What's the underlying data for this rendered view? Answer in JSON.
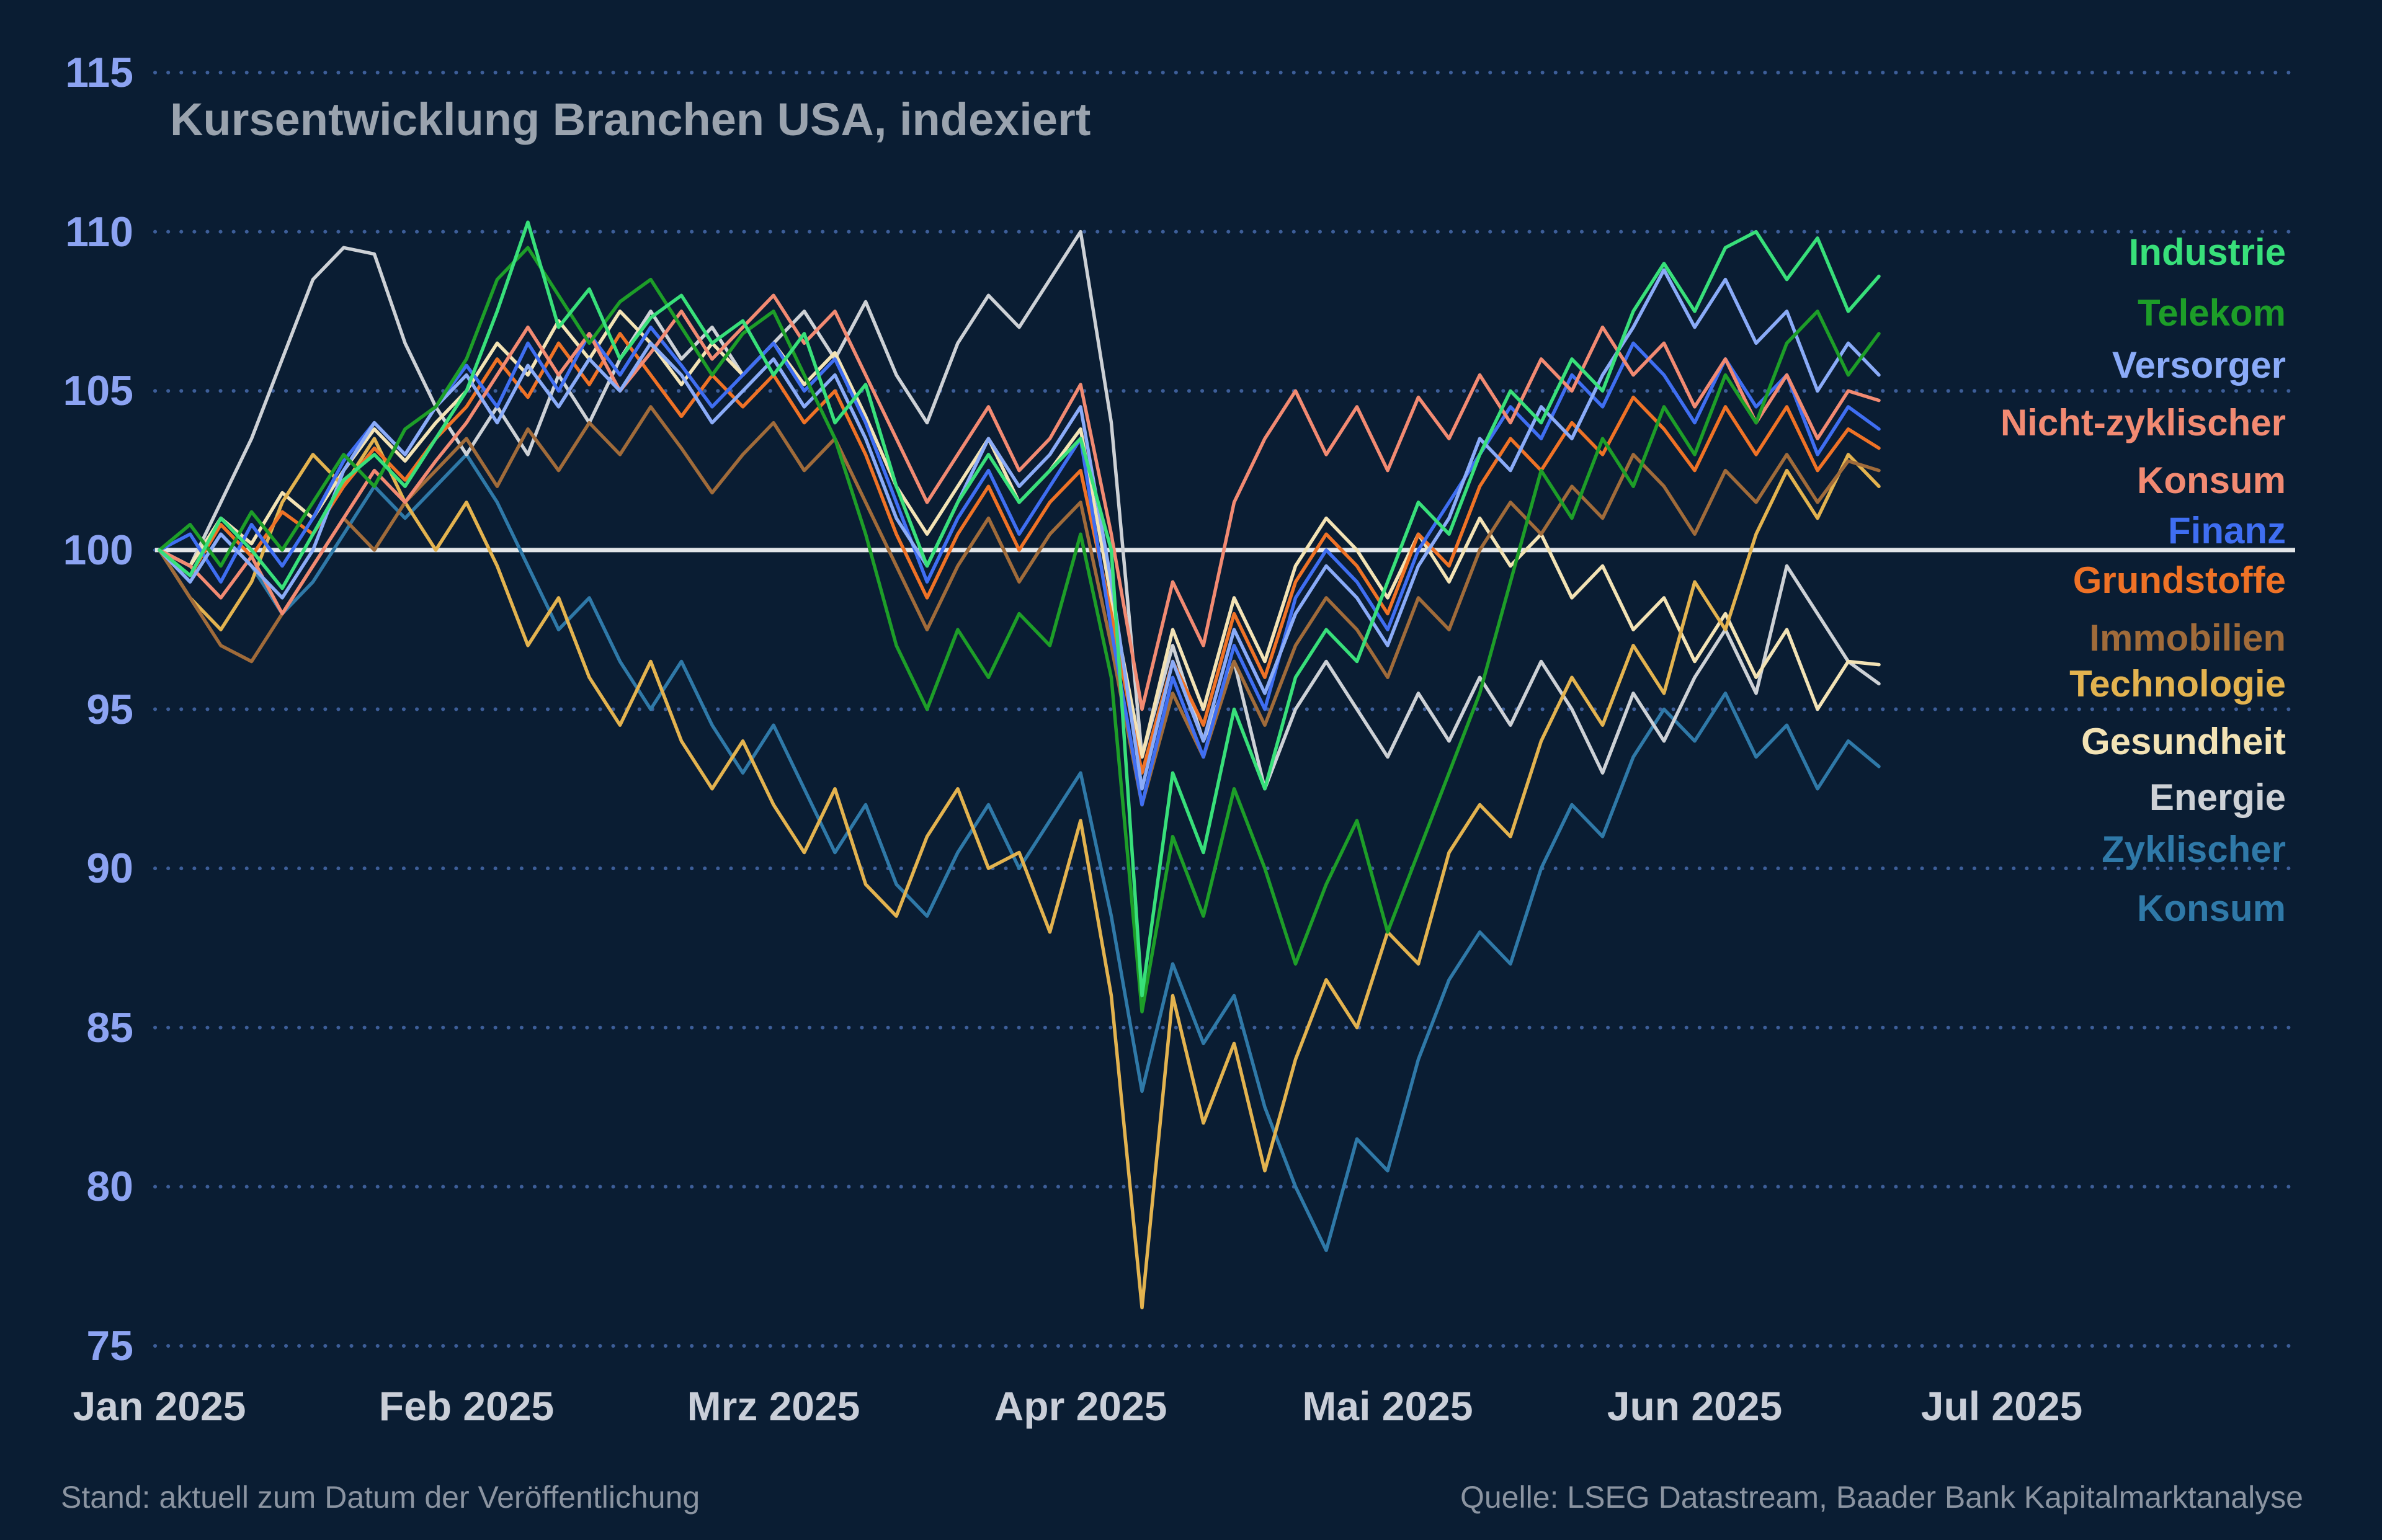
{
  "title": "Kursentwicklung Branchen USA, indexiert",
  "footer": {
    "left": "Stand: aktuell zum Datum der Veröffentlichung",
    "right": "Quelle: LSEG Datastream, Baader Bank Kapitalmarktanalyse"
  },
  "legend": {
    "items": [
      {
        "text": "Industrie",
        "series": 0
      },
      {
        "text": "Telekom",
        "series": 1
      },
      {
        "text": "Versorger",
        "series": 2
      },
      {
        "text": "Nicht-zyklischer",
        "series": 3
      },
      {
        "text": "Konsum",
        "series": 3
      },
      {
        "text": "Finanz",
        "series": 4
      },
      {
        "text": "Grundstoffe",
        "series": 5
      },
      {
        "text": "Immobilien",
        "series": 6
      },
      {
        "text": "Technologie",
        "series": 7
      },
      {
        "text": "Gesundheit",
        "series": 8
      },
      {
        "text": "Energie",
        "series": 9
      },
      {
        "text": "Zyklischer",
        "series": 10
      },
      {
        "text": "Konsum",
        "series": 10
      }
    ]
  },
  "chart_data": {
    "type": "line",
    "title": "Kursentwicklung Branchen USA, indexiert",
    "index_base": 100,
    "baseline": 100,
    "ylim": [
      75,
      115
    ],
    "yticks": [
      115,
      110,
      105,
      100,
      95,
      90,
      85,
      80,
      75
    ],
    "x_labels": [
      "Jan 2025",
      "Feb 2025",
      "Mrz 2025",
      "Apr 2025",
      "Mai 2025",
      "Jun 2025",
      "Jul 2025"
    ],
    "x_step_months": 0.1,
    "grid": "dotted-horizontal",
    "legend_position": "right",
    "colors": {
      "background": "#0a1d33",
      "gridline": "#3d5e99",
      "baseline_line": "#e2e5e8",
      "y_tick_label": "#8ca3f2",
      "x_tick_label": "#c9ced8",
      "title_text": "#9aa3ae",
      "footer_text": "#8b94a1"
    },
    "series": [
      {
        "name": "Industrie",
        "color": "#38e07a",
        "values": [
          100,
          99.2,
          101,
          100,
          98.8,
          100.5,
          102.2,
          103,
          102,
          103.5,
          105,
          107.5,
          110.3,
          107,
          108.2,
          106,
          107.3,
          108,
          106.5,
          107.2,
          105.5,
          106.8,
          104,
          105.2,
          102,
          99.5,
          101.5,
          103,
          101.5,
          102.5,
          103.5,
          100,
          86,
          93,
          90.5,
          95,
          92.5,
          96,
          97.5,
          96.5,
          99,
          101.5,
          100.5,
          103,
          105,
          104,
          106,
          105,
          107.5,
          109,
          107.5,
          109.5,
          110,
          108.5,
          109.8,
          107.5,
          108.6
        ]
      },
      {
        "name": "Telekom",
        "color": "#1d9e28",
        "values": [
          100,
          100.8,
          99.5,
          101.2,
          100,
          101.5,
          103,
          102,
          103.8,
          104.5,
          106,
          108.5,
          109.5,
          108,
          106.5,
          107.8,
          108.5,
          107,
          105.5,
          106.8,
          107.5,
          105.5,
          103.5,
          100.5,
          97,
          95,
          97.5,
          96,
          98,
          97,
          100.5,
          96,
          85.5,
          91,
          88.5,
          92.5,
          90,
          87,
          89.5,
          91.5,
          88,
          90.5,
          93,
          95.5,
          99,
          102.5,
          101,
          103.5,
          102,
          104.5,
          103,
          105.5,
          104,
          106.5,
          107.5,
          105.5,
          106.8
        ]
      },
      {
        "name": "Versorger",
        "color": "#8aabf8",
        "values": [
          100,
          99,
          100.5,
          99.5,
          98.5,
          100,
          102.5,
          104,
          103,
          104.5,
          105.5,
          104,
          105.8,
          104.5,
          106,
          105,
          106.5,
          105.5,
          104,
          105,
          106,
          104.5,
          105.5,
          103.5,
          101,
          99.5,
          101.5,
          103.5,
          102,
          103,
          104.5,
          99,
          92.5,
          96.5,
          94,
          97.5,
          95.5,
          98,
          99.5,
          98.5,
          97,
          99.5,
          101,
          103.5,
          102.5,
          104.5,
          103.5,
          105.5,
          107,
          108.8,
          107,
          108.5,
          106.5,
          107.5,
          105,
          106.5,
          105.5
        ]
      },
      {
        "name": "Nicht-zyklischer Konsum",
        "color": "#f28a72",
        "values": [
          100,
          99.5,
          98.5,
          99.8,
          98,
          99.5,
          101,
          102.5,
          101.5,
          102.8,
          104,
          105.5,
          107,
          105.5,
          106.8,
          105,
          106.2,
          107.5,
          106,
          107,
          108,
          106.5,
          107.5,
          105.5,
          103.5,
          101.5,
          103,
          104.5,
          102.5,
          103.5,
          105.2,
          100.5,
          95,
          99,
          97,
          101.5,
          103.5,
          105,
          103,
          104.5,
          102.5,
          104.8,
          103.5,
          105.5,
          104,
          106,
          105,
          107,
          105.5,
          106.5,
          104.5,
          106,
          104,
          105.5,
          103.5,
          105,
          104.7
        ]
      },
      {
        "name": "Finanz",
        "color": "#3f6ef2",
        "values": [
          100,
          100.5,
          99,
          100.8,
          99.5,
          101,
          102.8,
          104,
          103,
          104.5,
          105.8,
          104.5,
          106.5,
          105,
          106.8,
          105.5,
          107,
          105.8,
          104.5,
          105.5,
          106.5,
          105,
          106,
          104,
          101.5,
          99,
          101,
          102.5,
          100.5,
          102,
          103.5,
          97.5,
          92,
          96,
          93.5,
          97,
          95,
          98.5,
          100,
          99,
          97.5,
          100,
          101.5,
          103,
          104.5,
          103.5,
          105.5,
          104.5,
          106.5,
          105.5,
          104,
          106,
          104.5,
          105.5,
          103,
          104.5,
          103.8
        ]
      },
      {
        "name": "Grundstoffe",
        "color": "#ef7226",
        "values": [
          100,
          99.2,
          100.8,
          99.8,
          101.2,
          100.5,
          102,
          103.2,
          102.2,
          103.5,
          104.5,
          106,
          104.8,
          106.5,
          105.2,
          106.8,
          105.5,
          104.2,
          105.5,
          104.5,
          105.5,
          104,
          105,
          103,
          100.5,
          98.5,
          100.5,
          102,
          100,
          101.5,
          102.5,
          98,
          93,
          96.5,
          94.5,
          98,
          96,
          99,
          100.5,
          99.5,
          98,
          100.5,
          99.5,
          102,
          103.5,
          102.5,
          104,
          103,
          104.8,
          103.8,
          102.5,
          104.5,
          103,
          104.5,
          102.5,
          103.8,
          103.2
        ]
      },
      {
        "name": "Immobilien",
        "color": "#a06b3a",
        "values": [
          100,
          98.5,
          97,
          96.5,
          98,
          99.5,
          101,
          100,
          101.5,
          102.5,
          103.5,
          102,
          103.8,
          102.5,
          104,
          103,
          104.5,
          103.2,
          101.8,
          103,
          104,
          102.5,
          103.5,
          101.5,
          99.5,
          97.5,
          99.5,
          101,
          99,
          100.5,
          101.5,
          97,
          92,
          95.5,
          93.5,
          96.5,
          94.5,
          97,
          98.5,
          97.5,
          96,
          98.5,
          97.5,
          100,
          101.5,
          100.5,
          102,
          101,
          103,
          102,
          100.5,
          102.5,
          101.5,
          103,
          101.5,
          102.8,
          102.5
        ]
      },
      {
        "name": "Technologie",
        "color": "#e3b34f",
        "values": [
          100,
          98.5,
          97.5,
          99,
          101.5,
          103,
          102,
          103.5,
          101.5,
          100,
          101.5,
          99.5,
          97,
          98.5,
          96,
          94.5,
          96.5,
          94,
          92.5,
          94,
          92,
          90.5,
          92.5,
          89.5,
          88.5,
          91,
          92.5,
          90,
          90.5,
          88,
          91.5,
          86,
          76.2,
          86,
          82,
          84.5,
          80.5,
          84,
          86.5,
          85,
          88,
          87,
          90.5,
          92,
          91,
          94,
          96,
          94.5,
          97,
          95.5,
          99,
          97.5,
          100.5,
          102.5,
          101,
          103,
          102
        ]
      },
      {
        "name": "Gesundheit",
        "color": "#f3e3b5",
        "values": [
          100,
          99.5,
          101,
          100.2,
          101.8,
          101,
          102.5,
          103.8,
          102.8,
          104,
          105,
          106.5,
          105.5,
          107.2,
          106,
          107.5,
          106.5,
          105.2,
          106.5,
          105.5,
          106.5,
          105.2,
          106.2,
          104.2,
          102,
          100.5,
          102,
          103.5,
          101.5,
          102.5,
          103.8,
          98.5,
          93.5,
          97.5,
          95,
          98.5,
          96.5,
          99.5,
          101,
          100,
          98.5,
          100.5,
          99,
          101,
          99.5,
          100.5,
          98.5,
          99.5,
          97.5,
          98.5,
          96.5,
          98,
          96,
          97.5,
          95,
          96.5,
          96.4
        ]
      },
      {
        "name": "Energie",
        "color": "#cdd1d6",
        "values": [
          100,
          99.5,
          101.5,
          103.5,
          106,
          108.5,
          109.5,
          109.3,
          106.5,
          104.5,
          103,
          104.5,
          103,
          105.5,
          104,
          106,
          107.5,
          106,
          107,
          105.5,
          106.5,
          107.5,
          106,
          107.8,
          105.5,
          104,
          106.5,
          108,
          107,
          108.5,
          110,
          104,
          93.5,
          97,
          94,
          96.5,
          92.5,
          95,
          96.5,
          95,
          93.5,
          95.5,
          94,
          96,
          94.5,
          96.5,
          95,
          93,
          95.5,
          94,
          96,
          97.5,
          95.5,
          99.5,
          98,
          96.5,
          95.8
        ]
      },
      {
        "name": "Zyklischer Konsum",
        "color": "#2f79a8",
        "values": [
          100,
          99,
          100.5,
          99.5,
          98,
          99,
          100.5,
          102,
          101,
          102,
          103,
          101.5,
          99.5,
          97.5,
          98.5,
          96.5,
          95,
          96.5,
          94.5,
          93,
          94.5,
          92.5,
          90.5,
          92,
          89.5,
          88.5,
          90.5,
          92,
          90,
          91.5,
          93,
          88.5,
          83,
          87,
          84.5,
          86,
          82.5,
          80,
          78,
          81.5,
          80.5,
          84,
          86.5,
          88,
          87,
          90,
          92,
          91,
          93.5,
          95,
          94,
          95.5,
          93.5,
          94.5,
          92.5,
          94,
          93.2
        ]
      }
    ]
  }
}
